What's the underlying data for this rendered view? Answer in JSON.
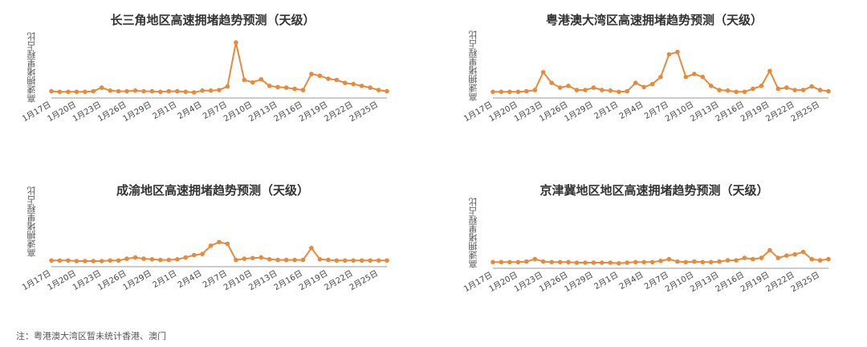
{
  "note": "注：粤港澳大湾区暂未统计香港、澳门",
  "style": {
    "line_color": "#E88A3C",
    "marker_color": "#E88A3C",
    "axis_color": "#999999"
  },
  "chart_data": [
    {
      "type": "line",
      "title": "长三角地区高速拥堵趋势预测（天级）",
      "ylabel": "高速拥堵里程占比",
      "xlabel": "",
      "grid": false,
      "legend": "none",
      "ylim": [
        0,
        100
      ],
      "tick_labels": [
        "1月17日",
        "1月20日",
        "1月23日",
        "1月26日",
        "1月29日",
        "2月1日",
        "2月4日",
        "2月7日",
        "2月10日",
        "2月13日",
        "2月16日",
        "2月19日",
        "2月22日",
        "2月25日"
      ],
      "x": [
        "1月17日",
        "1月18日",
        "1月19日",
        "1月20日",
        "1月21日",
        "1月22日",
        "1月23日",
        "1月24日",
        "1月25日",
        "1月26日",
        "1月27日",
        "1月28日",
        "1月29日",
        "1月30日",
        "1月31日",
        "2月1日",
        "2月2日",
        "2月3日",
        "2月4日",
        "2月5日",
        "2月6日",
        "2月7日",
        "2月8日",
        "2月9日",
        "2月10日",
        "2月11日",
        "2月12日",
        "2月13日",
        "2月14日",
        "2月15日",
        "2月16日",
        "2月17日",
        "2月18日",
        "2月19日",
        "2月20日",
        "2月21日",
        "2月22日",
        "2月23日",
        "2月24日",
        "2月25日",
        "2月26日"
      ],
      "series": [
        {
          "values": [
            6,
            5,
            5,
            5,
            5,
            6,
            12,
            7,
            6,
            6,
            7,
            6,
            6,
            5,
            6,
            6,
            5,
            4,
            7,
            7,
            8,
            14,
            88,
            25,
            21,
            26,
            15,
            13,
            12,
            10,
            8,
            35,
            32,
            27,
            25,
            20,
            18,
            15,
            12,
            8,
            6
          ]
        }
      ]
    },
    {
      "type": "line",
      "title": "粤港澳大湾区高速拥堵趋势预测（天级）",
      "ylabel": "高速拥堵里程占比",
      "xlabel": "",
      "grid": false,
      "legend": "none",
      "ylim": [
        0,
        100
      ],
      "tick_labels": [
        "1月17日",
        "1月20日",
        "1月23日",
        "1月26日",
        "1月29日",
        "2月1日",
        "2月4日",
        "2月7日",
        "2月10日",
        "2月13日",
        "2月16日",
        "2月19日",
        "2月22日",
        "2月25日"
      ],
      "x": [
        "1月17日",
        "1月18日",
        "1月19日",
        "1月20日",
        "1月21日",
        "1月22日",
        "1月23日",
        "1月24日",
        "1月25日",
        "1月26日",
        "1月27日",
        "1月28日",
        "1月29日",
        "1月30日",
        "1月31日",
        "2月1日",
        "2月2日",
        "2月3日",
        "2月4日",
        "2月5日",
        "2月6日",
        "2月7日",
        "2月8日",
        "2月9日",
        "2月10日",
        "2月11日",
        "2月12日",
        "2月13日",
        "2月14日",
        "2月15日",
        "2月16日",
        "2月17日",
        "2月18日",
        "2月19日",
        "2月20日",
        "2月21日",
        "2月22日",
        "2月23日",
        "2月24日",
        "2月25日",
        "2月26日"
      ],
      "series": [
        {
          "values": [
            5,
            5,
            5,
            5,
            6,
            8,
            38,
            20,
            12,
            15,
            8,
            8,
            12,
            8,
            7,
            5,
            6,
            20,
            13,
            18,
            30,
            68,
            72,
            30,
            35,
            30,
            15,
            8,
            7,
            5,
            5,
            10,
            15,
            40,
            10,
            12,
            8,
            8,
            14,
            8,
            6
          ]
        }
      ]
    },
    {
      "type": "line",
      "title": "成渝地区高速拥堵趋势预测（天级）",
      "ylabel": "高速拥堵里程占比",
      "xlabel": "",
      "grid": false,
      "legend": "none",
      "ylim": [
        0,
        100
      ],
      "tick_labels": [
        "1月17日",
        "1月20日",
        "1月23日",
        "1月26日",
        "1月29日",
        "2月1日",
        "2月4日",
        "2月7日",
        "2月10日",
        "2月13日",
        "2月16日",
        "2月19日",
        "2月22日",
        "2月25日"
      ],
      "x": [
        "1月17日",
        "1月18日",
        "1月19日",
        "1月20日",
        "1月21日",
        "1月22日",
        "1月23日",
        "1月24日",
        "1月25日",
        "1月26日",
        "1月27日",
        "1月28日",
        "1月29日",
        "1月30日",
        "1月31日",
        "2月1日",
        "2月2日",
        "2月3日",
        "2月4日",
        "2月5日",
        "2月6日",
        "2月7日",
        "2月8日",
        "2月9日",
        "2月10日",
        "2月11日",
        "2月12日",
        "2月13日",
        "2月14日",
        "2月15日",
        "2月16日",
        "2月17日",
        "2月18日",
        "2月19日",
        "2月20日",
        "2月21日",
        "2月22日",
        "2月23日",
        "2月24日",
        "2月25日",
        "2月26日"
      ],
      "series": [
        {
          "values": [
            5,
            5,
            5,
            4,
            4,
            4,
            4,
            5,
            5,
            8,
            10,
            8,
            7,
            6,
            6,
            7,
            10,
            14,
            16,
            30,
            36,
            33,
            6,
            8,
            9,
            10,
            7,
            6,
            6,
            6,
            6,
            26,
            7,
            6,
            5,
            5,
            5,
            5,
            5,
            5,
            5
          ]
        }
      ]
    },
    {
      "type": "line",
      "title": "京津冀地区地区高速拥堵趋势预测（天级）",
      "ylabel": "高速拥堵里程占比",
      "xlabel": "",
      "grid": false,
      "legend": "none",
      "ylim": [
        0,
        100
      ],
      "tick_labels": [
        "1月17日",
        "1月20日",
        "1月23日",
        "1月26日",
        "1月29日",
        "2月1日",
        "2月4日",
        "2月7日",
        "2月10日",
        "2月13日",
        "2月16日",
        "2月19日",
        "2月22日",
        "2月25日"
      ],
      "x": [
        "1月17日",
        "1月18日",
        "1月19日",
        "1月20日",
        "1月21日",
        "1月22日",
        "1月23日",
        "1月24日",
        "1月25日",
        "1月26日",
        "1月27日",
        "1月28日",
        "1月29日",
        "1月30日",
        "1月31日",
        "2月1日",
        "2月2日",
        "2月3日",
        "2月4日",
        "2月5日",
        "2月6日",
        "2月7日",
        "2月8日",
        "2月9日",
        "2月10日",
        "2月11日",
        "2月12日",
        "2月13日",
        "2月14日",
        "2月15日",
        "2月16日",
        "2月17日",
        "2月18日",
        "2月19日",
        "2月20日",
        "2月21日",
        "2月22日",
        "2月23日",
        "2月24日",
        "2月25日",
        "2月26日"
      ],
      "series": [
        {
          "values": [
            5,
            5,
            5,
            5,
            6,
            10,
            6,
            5,
            5,
            5,
            4,
            4,
            4,
            4,
            4,
            3,
            4,
            5,
            5,
            5,
            7,
            10,
            6,
            5,
            6,
            5,
            5,
            6,
            8,
            8,
            12,
            10,
            12,
            25,
            12,
            16,
            18,
            22,
            10,
            8,
            10
          ]
        }
      ]
    }
  ]
}
